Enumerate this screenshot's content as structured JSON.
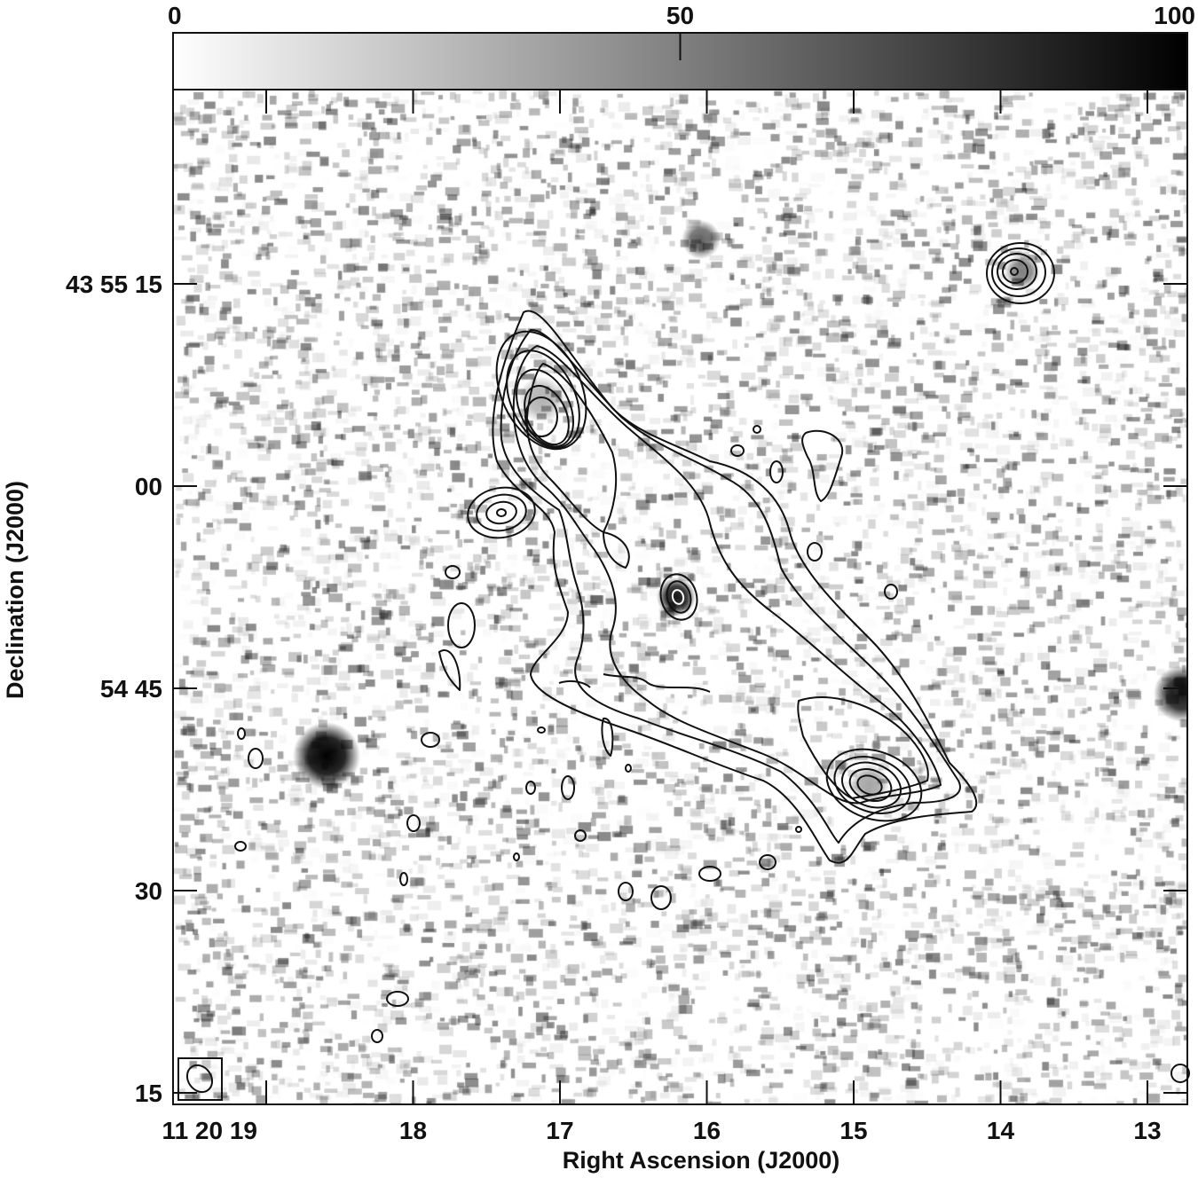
{
  "chart_data": {
    "type": "heatmap",
    "description_type": "greyscale image with contour overlay",
    "xlabel": "Right Ascension (J2000)",
    "ylabel": "Declination (J2000)",
    "x_ticks": [
      "11 20 19",
      "18",
      "17",
      "16",
      "15",
      "14",
      "13"
    ],
    "x_tick_seconds": [
      19,
      18,
      17,
      16,
      15,
      14,
      13
    ],
    "y_ticks": [
      "43 55 15",
      "00",
      "54 45",
      "30",
      "15"
    ],
    "colorbar": {
      "ticks": [
        "0",
        "50",
        "100"
      ],
      "tick_values": [
        0,
        50,
        100
      ],
      "range": [
        0,
        100
      ],
      "colormap": "white-to-black greyscale"
    },
    "colors": {
      "contour": "#111111",
      "inner_contour": "#ffffff",
      "frame": "#111111"
    },
    "beam_shown": true
  }
}
